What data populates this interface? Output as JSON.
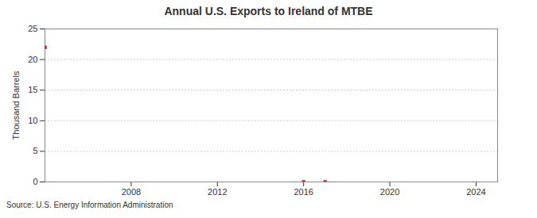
{
  "chart_data": {
    "type": "scatter",
    "title": "Annual U.S. Exports to Ireland of MTBE",
    "y_label": "Thousand Barrels",
    "caption": "Source: U.S. Energy Information Administration",
    "x": [
      2004,
      2016,
      2017
    ],
    "values": [
      22,
      0,
      0
    ],
    "color": "#cc2222",
    "marker": "square",
    "xlim": [
      2004,
      2025
    ],
    "xticks": [
      2008,
      2012,
      2016,
      2020,
      2024
    ],
    "ylim": [
      0,
      25
    ],
    "yticks": [
      0,
      5,
      10,
      15,
      20,
      25
    ],
    "grid": true
  }
}
